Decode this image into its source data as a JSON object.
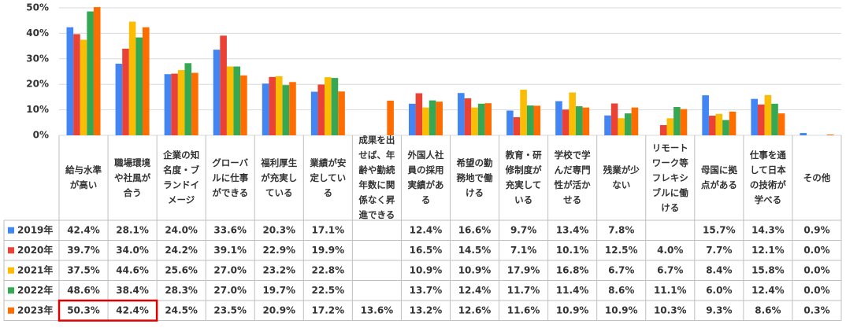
{
  "chart_data": {
    "type": "bar",
    "categories": [
      "給与水準が高い",
      "職場環境や社風が合う",
      "企業の知名度・ブランドイメージ",
      "グローバルに仕事ができる",
      "福利厚生が充実している",
      "業績が安定している",
      "成果を出せば、年齢や勤続年数に関係なく昇進できる",
      "外国人社員の採用実績がある",
      "希望の勤務地で働ける",
      "教育・研修制度が充実している",
      "学校で学んだ専門性が活かせる",
      "残業が少ない",
      "リモートワーク等フレキシブルに働ける",
      "母国に拠点がある",
      "仕事を通して日本の技術が学べる",
      "その他"
    ],
    "series": [
      {
        "name": "2019年",
        "color": "#4285f4",
        "values": [
          42.4,
          28.1,
          24.0,
          33.6,
          20.3,
          17.1,
          null,
          12.4,
          16.6,
          9.7,
          13.4,
          7.8,
          null,
          15.7,
          14.3,
          0.9
        ],
        "value_labels": [
          "42.4%",
          "28.1%",
          "24.0%",
          "33.6%",
          "20.3%",
          "17.1%",
          null,
          "12.4%",
          "16.6%",
          "9.7%",
          "13.4%",
          "7.8%",
          null,
          "15.7%",
          "14.3%",
          "0.9%"
        ]
      },
      {
        "name": "2020年",
        "color": "#ea4335",
        "values": [
          39.7,
          34.0,
          24.2,
          39.1,
          22.9,
          19.9,
          null,
          16.5,
          14.5,
          7.1,
          10.1,
          12.5,
          4.0,
          7.7,
          12.1,
          0.0
        ],
        "value_labels": [
          "39.7%",
          "34.0%",
          "24.2%",
          "39.1%",
          "22.9%",
          "19.9%",
          null,
          "16.5%",
          "14.5%",
          "7.1%",
          "10.1%",
          "12.5%",
          "4.0%",
          "7.7%",
          "12.1%",
          "0.0%"
        ]
      },
      {
        "name": "2021年",
        "color": "#fbbc04",
        "values": [
          37.5,
          44.6,
          25.6,
          27.0,
          23.2,
          22.8,
          null,
          10.9,
          10.9,
          17.9,
          16.8,
          6.7,
          6.7,
          8.4,
          15.8,
          0.0
        ],
        "value_labels": [
          "37.5%",
          "44.6%",
          "25.6%",
          "27.0%",
          "23.2%",
          "22.8%",
          null,
          "10.9%",
          "10.9%",
          "17.9%",
          "16.8%",
          "6.7%",
          "6.7%",
          "8.4%",
          "15.8%",
          "0.0%"
        ]
      },
      {
        "name": "2022年",
        "color": "#34a853",
        "values": [
          48.6,
          38.4,
          28.3,
          27.0,
          19.7,
          22.5,
          null,
          13.7,
          12.4,
          11.7,
          11.4,
          8.6,
          11.1,
          6.0,
          12.4,
          0.0
        ],
        "value_labels": [
          "48.6%",
          "38.4%",
          "28.3%",
          "27.0%",
          "19.7%",
          "22.5%",
          null,
          "13.7%",
          "12.4%",
          "11.7%",
          "11.4%",
          "8.6%",
          "11.1%",
          "6.0%",
          "12.4%",
          "0.0%"
        ]
      },
      {
        "name": "2023年",
        "color": "#ff6d01",
        "values": [
          50.3,
          42.4,
          24.5,
          23.5,
          20.9,
          17.2,
          13.6,
          13.2,
          12.6,
          11.6,
          10.9,
          10.9,
          10.3,
          9.3,
          8.6,
          0.3
        ],
        "value_labels": [
          "50.3%",
          "42.4%",
          "24.5%",
          "23.5%",
          "20.9%",
          "17.2%",
          "13.6%",
          "13.2%",
          "12.6%",
          "11.6%",
          "10.9%",
          "10.9%",
          "10.3%",
          "9.3%",
          "8.6%",
          "0.3%"
        ]
      }
    ],
    "ylim": [
      0,
      50
    ],
    "yticks": [
      {
        "value": 0,
        "label": "0%"
      },
      {
        "value": 10,
        "label": "10%"
      },
      {
        "value": 20,
        "label": "20%"
      },
      {
        "value": 30,
        "label": "30%"
      },
      {
        "value": 40,
        "label": "40%"
      },
      {
        "value": 50,
        "label": "50%"
      }
    ],
    "grid": true
  }
}
